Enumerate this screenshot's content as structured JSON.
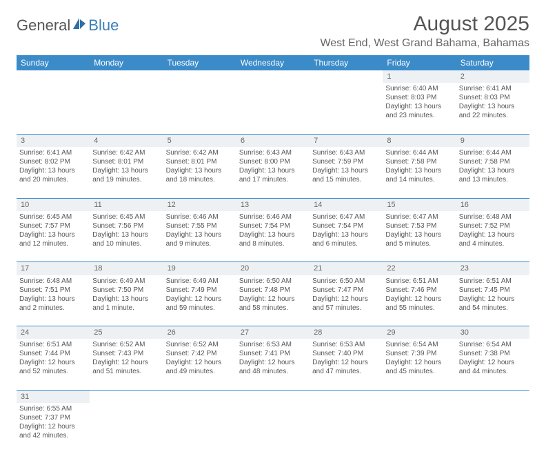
{
  "logo": {
    "text_a": "General",
    "text_b": "Blue"
  },
  "title": "August 2025",
  "location": "West End, West Grand Bahama, Bahamas",
  "columns": [
    "Sunday",
    "Monday",
    "Tuesday",
    "Wednesday",
    "Thursday",
    "Friday",
    "Saturday"
  ],
  "header_bg": "#3b8bc9",
  "weeks": [
    [
      null,
      null,
      null,
      null,
      null,
      {
        "n": "1",
        "sunrise": "6:40 AM",
        "sunset": "8:03 PM",
        "daylight": "13 hours and 23 minutes."
      },
      {
        "n": "2",
        "sunrise": "6:41 AM",
        "sunset": "8:03 PM",
        "daylight": "13 hours and 22 minutes."
      }
    ],
    [
      {
        "n": "3",
        "sunrise": "6:41 AM",
        "sunset": "8:02 PM",
        "daylight": "13 hours and 20 minutes."
      },
      {
        "n": "4",
        "sunrise": "6:42 AM",
        "sunset": "8:01 PM",
        "daylight": "13 hours and 19 minutes."
      },
      {
        "n": "5",
        "sunrise": "6:42 AM",
        "sunset": "8:01 PM",
        "daylight": "13 hours and 18 minutes."
      },
      {
        "n": "6",
        "sunrise": "6:43 AM",
        "sunset": "8:00 PM",
        "daylight": "13 hours and 17 minutes."
      },
      {
        "n": "7",
        "sunrise": "6:43 AM",
        "sunset": "7:59 PM",
        "daylight": "13 hours and 15 minutes."
      },
      {
        "n": "8",
        "sunrise": "6:44 AM",
        "sunset": "7:58 PM",
        "daylight": "13 hours and 14 minutes."
      },
      {
        "n": "9",
        "sunrise": "6:44 AM",
        "sunset": "7:58 PM",
        "daylight": "13 hours and 13 minutes."
      }
    ],
    [
      {
        "n": "10",
        "sunrise": "6:45 AM",
        "sunset": "7:57 PM",
        "daylight": "13 hours and 12 minutes."
      },
      {
        "n": "11",
        "sunrise": "6:45 AM",
        "sunset": "7:56 PM",
        "daylight": "13 hours and 10 minutes."
      },
      {
        "n": "12",
        "sunrise": "6:46 AM",
        "sunset": "7:55 PM",
        "daylight": "13 hours and 9 minutes."
      },
      {
        "n": "13",
        "sunrise": "6:46 AM",
        "sunset": "7:54 PM",
        "daylight": "13 hours and 8 minutes."
      },
      {
        "n": "14",
        "sunrise": "6:47 AM",
        "sunset": "7:54 PM",
        "daylight": "13 hours and 6 minutes."
      },
      {
        "n": "15",
        "sunrise": "6:47 AM",
        "sunset": "7:53 PM",
        "daylight": "13 hours and 5 minutes."
      },
      {
        "n": "16",
        "sunrise": "6:48 AM",
        "sunset": "7:52 PM",
        "daylight": "13 hours and 4 minutes."
      }
    ],
    [
      {
        "n": "17",
        "sunrise": "6:48 AM",
        "sunset": "7:51 PM",
        "daylight": "13 hours and 2 minutes."
      },
      {
        "n": "18",
        "sunrise": "6:49 AM",
        "sunset": "7:50 PM",
        "daylight": "13 hours and 1 minute."
      },
      {
        "n": "19",
        "sunrise": "6:49 AM",
        "sunset": "7:49 PM",
        "daylight": "12 hours and 59 minutes."
      },
      {
        "n": "20",
        "sunrise": "6:50 AM",
        "sunset": "7:48 PM",
        "daylight": "12 hours and 58 minutes."
      },
      {
        "n": "21",
        "sunrise": "6:50 AM",
        "sunset": "7:47 PM",
        "daylight": "12 hours and 57 minutes."
      },
      {
        "n": "22",
        "sunrise": "6:51 AM",
        "sunset": "7:46 PM",
        "daylight": "12 hours and 55 minutes."
      },
      {
        "n": "23",
        "sunrise": "6:51 AM",
        "sunset": "7:45 PM",
        "daylight": "12 hours and 54 minutes."
      }
    ],
    [
      {
        "n": "24",
        "sunrise": "6:51 AM",
        "sunset": "7:44 PM",
        "daylight": "12 hours and 52 minutes."
      },
      {
        "n": "25",
        "sunrise": "6:52 AM",
        "sunset": "7:43 PM",
        "daylight": "12 hours and 51 minutes."
      },
      {
        "n": "26",
        "sunrise": "6:52 AM",
        "sunset": "7:42 PM",
        "daylight": "12 hours and 49 minutes."
      },
      {
        "n": "27",
        "sunrise": "6:53 AM",
        "sunset": "7:41 PM",
        "daylight": "12 hours and 48 minutes."
      },
      {
        "n": "28",
        "sunrise": "6:53 AM",
        "sunset": "7:40 PM",
        "daylight": "12 hours and 47 minutes."
      },
      {
        "n": "29",
        "sunrise": "6:54 AM",
        "sunset": "7:39 PM",
        "daylight": "12 hours and 45 minutes."
      },
      {
        "n": "30",
        "sunrise": "6:54 AM",
        "sunset": "7:38 PM",
        "daylight": "12 hours and 44 minutes."
      }
    ],
    [
      {
        "n": "31",
        "sunrise": "6:55 AM",
        "sunset": "7:37 PM",
        "daylight": "12 hours and 42 minutes."
      },
      null,
      null,
      null,
      null,
      null,
      null
    ]
  ],
  "labels": {
    "sunrise": "Sunrise:",
    "sunset": "Sunset:",
    "daylight": "Daylight:"
  }
}
